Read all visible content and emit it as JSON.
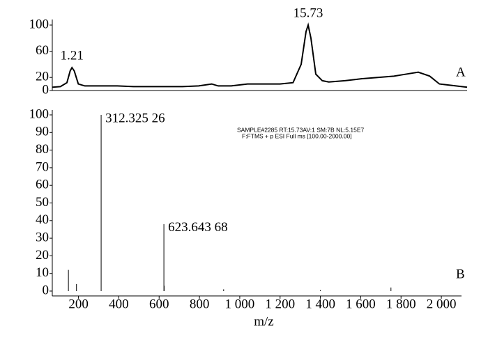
{
  "chart_data": [
    {
      "type": "line",
      "x": [
        0,
        0.5,
        0.9,
        1.1,
        1.21,
        1.35,
        1.6,
        2,
        3,
        4,
        5,
        6,
        7,
        8,
        9,
        9.8,
        10.2,
        11,
        12,
        13,
        14,
        14.8,
        15.3,
        15.6,
        15.73,
        15.9,
        16.2,
        16.6,
        17,
        18,
        19,
        20,
        21,
        21.5,
        22.5,
        23.2,
        23.8,
        25.5
      ],
      "series": [
        {
          "color": "#000000",
          "values": [
            5,
            6,
            12,
            30,
            35,
            30,
            10,
            7,
            7,
            7,
            6,
            6,
            6,
            6,
            7,
            10,
            7,
            7,
            10,
            10,
            10,
            12,
            40,
            90,
            100,
            80,
            25,
            15,
            13,
            15,
            18,
            20,
            22,
            24,
            28,
            22,
            10,
            5
          ]
        }
      ],
      "xlim": [
        0,
        25.5
      ],
      "ylim": [
        0,
        100
      ],
      "yticks": [
        0,
        20,
        60,
        100
      ],
      "peak_labels": [
        {
          "x": 1.21,
          "y": 35,
          "label": "1.21"
        },
        {
          "x": 15.73,
          "y": 100,
          "label": "15.73"
        }
      ],
      "panel_label": "A"
    },
    {
      "type": "stem",
      "x": [
        150,
        190,
        312.32526,
        623.64368,
        625,
        920,
        1400,
        1750
      ],
      "series": [
        {
          "color": "#000000",
          "values": [
            12,
            4,
            100,
            38,
            3,
            1,
            0.5,
            2
          ]
        }
      ],
      "xlim": [
        70,
        2100
      ],
      "ylim": [
        0,
        100
      ],
      "xticks": [
        200,
        400,
        600,
        800,
        {
          "value": 1000,
          "label": "1 000"
        },
        {
          "value": 1200,
          "label": "1 200"
        },
        {
          "value": 1400,
          "label": "1 400"
        },
        {
          "value": 1600,
          "label": "1 600"
        },
        {
          "value": 1800,
          "label": "1 800"
        },
        {
          "value": 2000,
          "label": "2 000"
        }
      ],
      "yticks": [
        0,
        10,
        20,
        30,
        40,
        50,
        60,
        70,
        80,
        90,
        100
      ],
      "x_label": "m/z",
      "peak_labels": [
        {
          "x": 312.32526,
          "y": 100,
          "label": "312.325 26"
        },
        {
          "x": 623.64368,
          "y": 38,
          "label": "623.643 68"
        }
      ],
      "annotations": [
        "SAMPLE#2285 RT:15.73AV:1 SM:7B NL:5.15E7",
        "F:FTMS + p ESI Full ms [100.00-2000.00]"
      ],
      "panel_label": "B"
    }
  ]
}
